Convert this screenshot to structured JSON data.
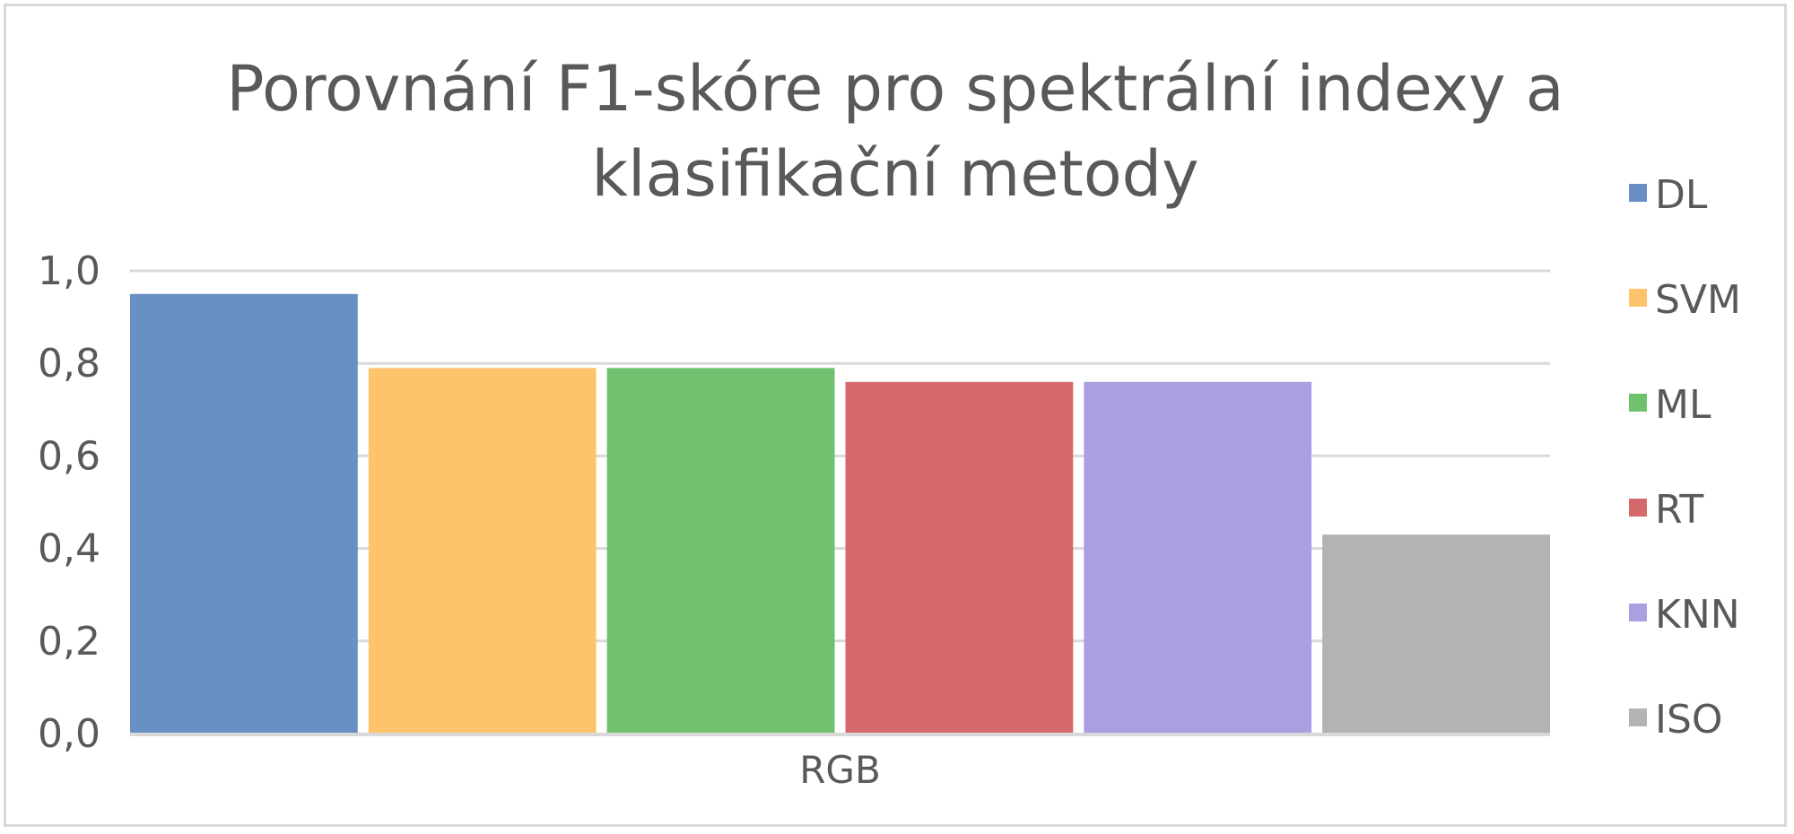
{
  "chart_data": {
    "type": "bar",
    "title": "Porovnání F1-skóre pro spektrální indexy a klasifikační metody",
    "title_lines": [
      "Porovnání F1-skóre pro spektrální indexy a",
      "klasifikační metody"
    ],
    "categories": [
      "RGB"
    ],
    "series": [
      {
        "name": "DL",
        "values": [
          0.95
        ],
        "color": "#6890c4"
      },
      {
        "name": "SVM",
        "values": [
          0.79
        ],
        "color": "#fdc46b"
      },
      {
        "name": "ML",
        "values": [
          0.79
        ],
        "color": "#6fc16e"
      },
      {
        "name": "RT",
        "values": [
          0.76
        ],
        "color": "#d6696b"
      },
      {
        "name": "KNN",
        "values": [
          0.76
        ],
        "color": "#a99fe1"
      },
      {
        "name": "ISO",
        "values": [
          0.43
        ],
        "color": "#b3b3b3"
      }
    ],
    "ylim": [
      0,
      1
    ],
    "yticks": [
      0.0,
      0.2,
      0.4,
      0.6,
      0.8,
      1.0
    ],
    "ytick_labels": [
      "0,0",
      "0,2",
      "0,4",
      "0,6",
      "0,8",
      "1,0"
    ],
    "xlabel": "",
    "ylabel": "",
    "grid": true,
    "legend_position": "right",
    "gridline_color": "#d9d9d9",
    "axis_color": "#d9d9d9"
  }
}
